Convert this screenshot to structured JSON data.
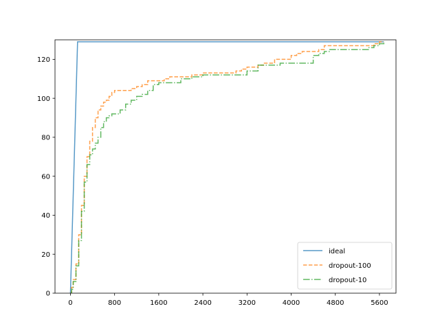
{
  "chart_data": {
    "type": "line",
    "title": "",
    "xlabel": "",
    "ylabel": "",
    "xlim": [
      -280,
      5900
    ],
    "ylim": [
      0,
      130
    ],
    "x_ticks": [
      0,
      800,
      1600,
      2400,
      3200,
      4000,
      4800,
      5600
    ],
    "x_tick_labels": [
      "0",
      "800",
      "1600",
      "2400",
      "3200",
      "4000",
      "4800",
      "5600"
    ],
    "y_ticks": [
      0,
      20,
      40,
      60,
      80,
      100,
      120
    ],
    "y_tick_labels": [
      "0",
      "20",
      "40",
      "60",
      "80",
      "100",
      "120"
    ],
    "grid": false,
    "legend_position": "lower-right",
    "series": [
      {
        "name": "ideal",
        "color": "#1f77b4",
        "dash": "solid",
        "x": [
          0,
          129,
          5680
        ],
        "y": [
          0,
          129,
          129
        ]
      },
      {
        "name": "dropout-100",
        "color": "#ff7f0e",
        "dash": "dashed",
        "x": [
          0,
          20,
          50,
          100,
          150,
          200,
          250,
          300,
          350,
          400,
          450,
          500,
          550,
          600,
          650,
          700,
          750,
          800,
          900,
          1000,
          1100,
          1200,
          1300,
          1400,
          1500,
          1600,
          1700,
          1800,
          1900,
          2000,
          2200,
          2400,
          2600,
          2800,
          3000,
          3100,
          3200,
          3300,
          3400,
          3500,
          3600,
          3700,
          3800,
          3900,
          4000,
          4100,
          4200,
          4300,
          4400,
          4500,
          4600,
          4700,
          4800,
          5000,
          5200,
          5400,
          5500,
          5600,
          5680
        ],
        "y": [
          0,
          3,
          7,
          15,
          30,
          45,
          60,
          70,
          78,
          85,
          90,
          94,
          96,
          98,
          99,
          101,
          103,
          104,
          104,
          104,
          105,
          106,
          107,
          109,
          109,
          109,
          110,
          111,
          111,
          111,
          112,
          113,
          113,
          113,
          114,
          115,
          116,
          116,
          117,
          118,
          118,
          120,
          120,
          120,
          122,
          123,
          124,
          124,
          124,
          125,
          127,
          127,
          127,
          127,
          127,
          127,
          128,
          129,
          129
        ]
      },
      {
        "name": "dropout-10",
        "color": "#2ca02c",
        "dash": "dashdot",
        "x": [
          0,
          20,
          50,
          100,
          150,
          200,
          250,
          300,
          350,
          400,
          450,
          500,
          550,
          600,
          650,
          700,
          750,
          800,
          900,
          1000,
          1100,
          1200,
          1300,
          1400,
          1500,
          1600,
          1800,
          2000,
          2200,
          2400,
          2600,
          2800,
          3000,
          3200,
          3400,
          3600,
          3800,
          4000,
          4200,
          4300,
          4400,
          4500,
          4600,
          4700,
          4800,
          5000,
          5200,
          5400,
          5500,
          5600,
          5680
        ],
        "y": [
          0,
          2,
          6,
          14,
          27,
          42,
          57,
          66,
          71,
          74,
          77,
          80,
          85,
          88,
          90,
          91,
          92,
          92,
          94,
          97,
          99,
          101,
          102,
          104,
          107,
          108,
          108,
          110,
          111,
          112,
          112,
          112,
          112,
          114,
          117,
          117,
          118,
          118,
          118,
          118,
          122,
          123,
          124,
          125,
          125,
          125,
          125,
          126,
          127,
          128,
          129
        ]
      }
    ]
  }
}
